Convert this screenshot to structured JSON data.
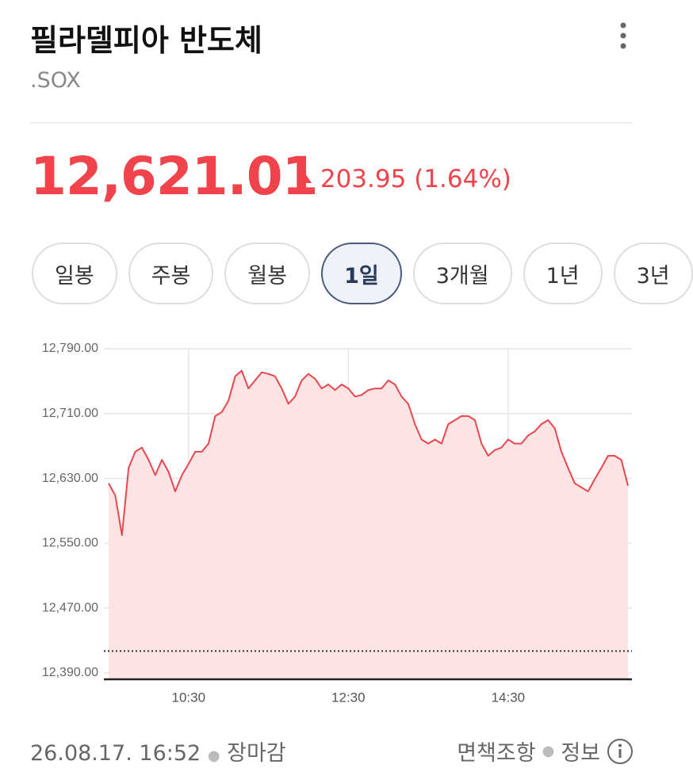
{
  "header": {
    "title": "필라델피아 반도체",
    "ticker": ".SOX"
  },
  "quote": {
    "price": "12,621.01",
    "change": "203.95",
    "change_percent": "(1.64%)"
  },
  "tabs": {
    "items": [
      "일봉",
      "주봉",
      "월봉",
      "1일",
      "3개월",
      "1년",
      "3년"
    ],
    "active": 3
  },
  "chart_data": {
    "type": "area",
    "x": [
      "09:30",
      "09:35",
      "09:40",
      "09:45",
      "09:50",
      "09:55",
      "10:00",
      "10:05",
      "10:10",
      "10:15",
      "10:20",
      "10:25",
      "10:30",
      "10:35",
      "10:40",
      "10:45",
      "10:50",
      "10:55",
      "11:00",
      "11:05",
      "11:10",
      "11:15",
      "11:20",
      "11:25",
      "11:30",
      "11:35",
      "11:40",
      "11:45",
      "11:50",
      "11:55",
      "12:00",
      "12:05",
      "12:10",
      "12:15",
      "12:20",
      "12:25",
      "12:30",
      "12:35",
      "12:40",
      "12:45",
      "12:50",
      "12:55",
      "13:00",
      "13:05",
      "13:10",
      "13:15",
      "13:20",
      "13:25",
      "13:30",
      "13:35",
      "13:40",
      "13:45",
      "13:50",
      "13:55",
      "14:00",
      "14:05",
      "14:10",
      "14:15",
      "14:20",
      "14:25",
      "14:30",
      "14:35",
      "14:40",
      "14:45",
      "14:50",
      "14:55",
      "15:00",
      "15:05",
      "15:10",
      "15:15",
      "15:20",
      "15:25",
      "15:30",
      "15:35",
      "15:40",
      "15:45",
      "15:50",
      "15:55",
      "16:00"
    ],
    "values": [
      12624,
      12609,
      12560,
      12643,
      12663,
      12668,
      12653,
      12634,
      12653,
      12638,
      12614,
      12634,
      12648,
      12663,
      12663,
      12673,
      12707,
      12712,
      12726,
      12756,
      12763,
      12741,
      12751,
      12761,
      12759,
      12756,
      12741,
      12722,
      12731,
      12751,
      12759,
      12753,
      12741,
      12746,
      12739,
      12746,
      12741,
      12731,
      12733,
      12739,
      12741,
      12741,
      12751,
      12746,
      12731,
      12722,
      12697,
      12678,
      12673,
      12678,
      12673,
      12697,
      12702,
      12707,
      12707,
      12702,
      12673,
      12658,
      12665,
      12668,
      12678,
      12673,
      12673,
      12683,
      12688,
      12697,
      12702,
      12692,
      12663,
      12643,
      12624,
      12619,
      12614,
      12629,
      12643,
      12658,
      12658,
      12653,
      12621.01
    ],
    "color": "#e8474e",
    "fill": "#fde3e3",
    "previous_close": 12417.06,
    "xlim": [
      "09:30",
      "16:00"
    ],
    "xticks": [
      "10:30",
      "12:30",
      "14:30"
    ],
    "ylim": [
      12390,
      12790
    ],
    "yticks": [
      {
        "value": 12390,
        "label": "12,390.00"
      },
      {
        "value": 12470,
        "label": "12,470.00"
      },
      {
        "value": 12550,
        "label": "12,550.00"
      },
      {
        "value": 12630,
        "label": "12,630.00"
      },
      {
        "value": 12710,
        "label": "12,710.00"
      },
      {
        "value": 12790,
        "label": "12,790.00"
      }
    ],
    "grid": true
  },
  "footer": {
    "timestamp": "26.08.17. 16:52",
    "status": "장마감",
    "disclaimer": "면책조항",
    "info": "정보"
  }
}
